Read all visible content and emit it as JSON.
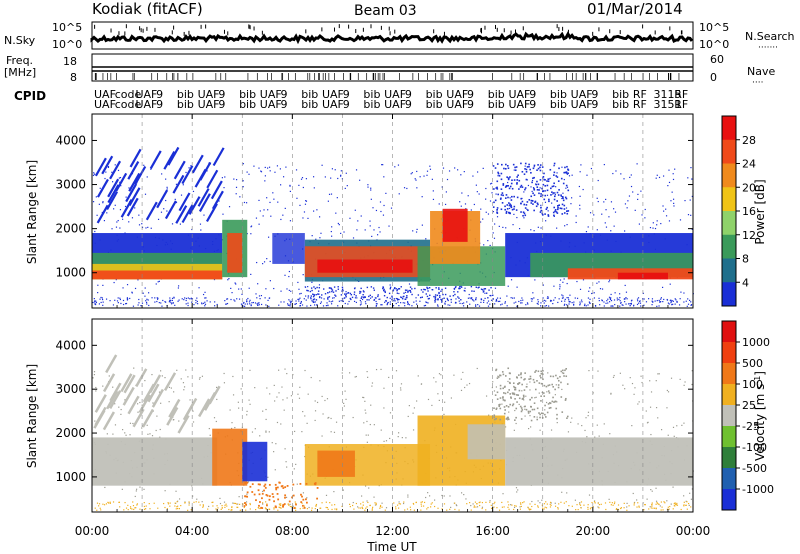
{
  "header": {
    "station": "Kodiak (fitACF)",
    "beam": "Beam 03",
    "date": "01/Mar/2014"
  },
  "strips": {
    "nsky_label": "N.Sky",
    "nsearch_label": "N.Search",
    "noise_ticks_left": [
      "10^5",
      "10^0"
    ],
    "noise_ticks_right": [
      "10^5",
      "10^0"
    ],
    "freq_label": "Freq.",
    "freq_unit": "[MHz]",
    "freq_ticks": [
      "18",
      "8"
    ],
    "nave_label": "Nave",
    "nave_ticks": [
      "60",
      "0"
    ],
    "cpid_label": "CPID",
    "cpid_row1": [
      "UAF",
      "code",
      "UAF",
      "9",
      "bib",
      "UAF",
      "9",
      "bib",
      "UAF",
      "9",
      "bib",
      "UAF",
      "9",
      "bib",
      "UAF",
      "9",
      "bib",
      "UAF",
      "9",
      "bib",
      "UAF",
      "9",
      "bib",
      "UAF",
      "9",
      "bib",
      "RF",
      "3115",
      "RF"
    ],
    "cpid_row2": [
      "UAF",
      "code",
      "UAF",
      "9",
      "bib",
      "UAF",
      "9",
      "bib",
      "UAF",
      "9",
      "bib",
      "UAF",
      "9",
      "bib",
      "UAF",
      "9",
      "bib",
      "UAF",
      "9",
      "bib",
      "UAF",
      "9",
      "bib",
      "UAF",
      "9",
      "bib",
      "RF",
      "3151",
      "RF"
    ]
  },
  "chart_data": [
    {
      "type": "heatmap",
      "name": "power",
      "ylabel": "Slant Range [km]",
      "yticks": [
        "1000",
        "2000",
        "3000",
        "4000"
      ],
      "ylim": [
        200,
        4600
      ],
      "colorbar_label": "Power [dB]",
      "colorbar_ticks": [
        "4",
        "8",
        "12",
        "16",
        "20",
        "24",
        "28"
      ],
      "colors": [
        "#1a2fd6",
        "#1f6f8c",
        "#3a9a5a",
        "#8fd26a",
        "#f0c417",
        "#f08a1c",
        "#f04a1a",
        "#e81010"
      ]
    },
    {
      "type": "heatmap",
      "name": "velocity",
      "ylabel": "Slant Range [km]",
      "yticks": [
        "1000",
        "2000",
        "3000",
        "4000"
      ],
      "ylim": [
        200,
        4600
      ],
      "colorbar_label": "Velocity [m s-1]",
      "colorbar_ticks": [
        "1000",
        "500",
        "100",
        "25",
        "-25",
        "-100",
        "-500",
        "-1000"
      ],
      "colors": [
        "#1a2fd6",
        "#2060b0",
        "#2f7f3a",
        "#6fc030",
        "#c0c0b8",
        "#f0b020",
        "#f07818",
        "#f04010",
        "#e01010"
      ]
    }
  ],
  "x_axis": {
    "xlabel": "Time UT",
    "ticks": [
      "00:00",
      "04:00",
      "08:00",
      "12:00",
      "16:00",
      "20:00",
      "00:00"
    ],
    "xlim": [
      0,
      24
    ]
  }
}
